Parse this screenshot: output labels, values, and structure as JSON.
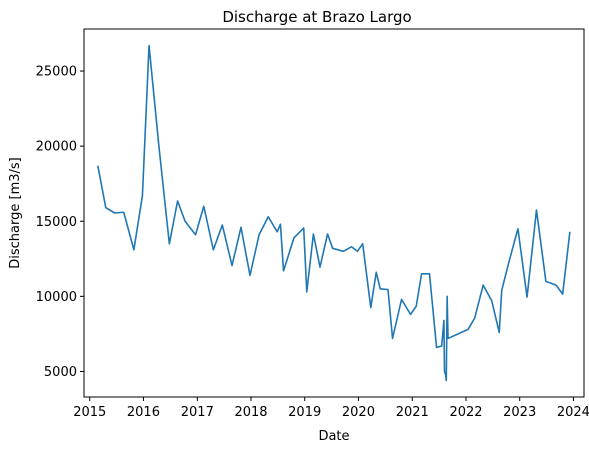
{
  "chart_data": {
    "type": "line",
    "title": "Discharge at Brazo Largo",
    "xlabel": "Date",
    "ylabel": "Discharge [m3/s]",
    "x_ticks": [
      "2015",
      "2016",
      "2017",
      "2018",
      "2019",
      "2020",
      "2021",
      "2022",
      "2023",
      "2024"
    ],
    "y_ticks": [
      "5000",
      "10000",
      "15000",
      "20000",
      "25000"
    ],
    "xlim": [
      "2014-11-23",
      "2024-03-13"
    ],
    "ylim": [
      3300,
      27800
    ],
    "grid": false,
    "legend": "none",
    "line_color": "#1f77b4",
    "series": [
      {
        "x": [
          "2015-02-25",
          "2015-04-20",
          "2015-06-20",
          "2015-08-20",
          "2015-10-28",
          "2015-12-25",
          "2016-02-08",
          "2016-04-15",
          "2016-06-25",
          "2016-08-20",
          "2016-10-10",
          "2016-12-20",
          "2017-02-14",
          "2017-04-20",
          "2017-06-20",
          "2017-08-25",
          "2017-10-25",
          "2017-12-25",
          "2018-02-25",
          "2018-04-28",
          "2018-06-28",
          "2018-07-20",
          "2018-08-10",
          "2018-10-20",
          "2018-12-25",
          "2019-01-15",
          "2019-03-01",
          "2019-04-15",
          "2019-06-05",
          "2019-07-10",
          "2019-09-20",
          "2019-11-15",
          "2019-12-25",
          "2020-01-30",
          "2020-03-25",
          "2020-05-01",
          "2020-05-28",
          "2020-07-20",
          "2020-08-20",
          "2020-10-20",
          "2020-12-20",
          "2021-01-28",
          "2021-03-05",
          "2021-04-28",
          "2021-06-15",
          "2021-07-20",
          "2021-08-04",
          "2021-08-08",
          "2021-08-15",
          "2021-08-20",
          "2021-08-26",
          "2021-09-01",
          "2022-01-15",
          "2022-03-01",
          "2022-04-28",
          "2022-06-25",
          "2022-08-15",
          "2022-09-01",
          "2022-10-20",
          "2022-12-20",
          "2023-02-20",
          "2023-04-25",
          "2023-06-28",
          "2023-09-05",
          "2023-10-20",
          "2023-12-08"
        ],
        "y": [
          18700,
          15900,
          15550,
          15600,
          13100,
          16700,
          26700,
          20000,
          13500,
          16350,
          15000,
          14100,
          16000,
          13100,
          14750,
          12050,
          14600,
          11400,
          14100,
          15300,
          14300,
          14800,
          11700,
          13900,
          14550,
          10300,
          14150,
          11950,
          14150,
          13200,
          13000,
          13300,
          13000,
          13500,
          9250,
          11600,
          10500,
          10450,
          7200,
          9800,
          8800,
          9350,
          11500,
          11500,
          6600,
          6700,
          8400,
          5000,
          4800,
          4400,
          10000,
          7200,
          7800,
          8550,
          10750,
          9700,
          7600,
          10400,
          12300,
          14500,
          9950,
          15750,
          11000,
          10750,
          10150,
          14300
        ]
      }
    ]
  }
}
